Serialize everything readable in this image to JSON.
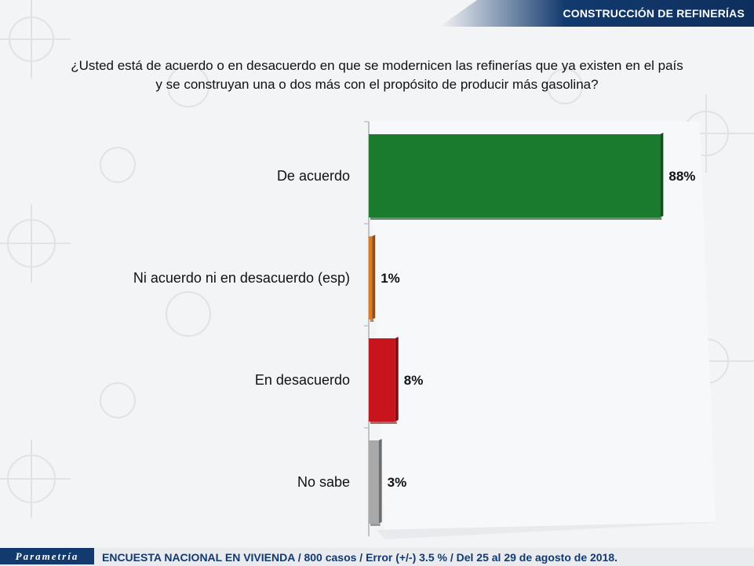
{
  "header": {
    "title": "CONSTRUCCIÓN DE REFINERÍAS"
  },
  "question": {
    "line1": "¿Usted está de acuerdo o en desacuerdo en que se modernicen las refinerías que ya existen en el país",
    "line2": "y se construyan una o dos más con el propósito de producir más gasolina?"
  },
  "chart_data": {
    "type": "bar",
    "orientation": "horizontal",
    "categories": [
      "De acuerdo",
      "Ni acuerdo ni en desacuerdo (esp)",
      "En desacuerdo",
      "No sabe"
    ],
    "values": [
      88,
      1,
      8,
      3
    ],
    "value_labels": [
      "88%",
      "1%",
      "8%",
      "3%"
    ],
    "colors": [
      "#1a7a2e",
      "#e07a1f",
      "#c8141c",
      "#a9a9a9"
    ],
    "xlim": [
      0,
      100
    ],
    "grid": false
  },
  "footer": {
    "logo": "Parametría",
    "text": "ENCUESTA NACIONAL EN VIVIENDA / 800 casos / Error (+/-) 3.5 % / Del 25 al 29 de agosto de 2018."
  }
}
